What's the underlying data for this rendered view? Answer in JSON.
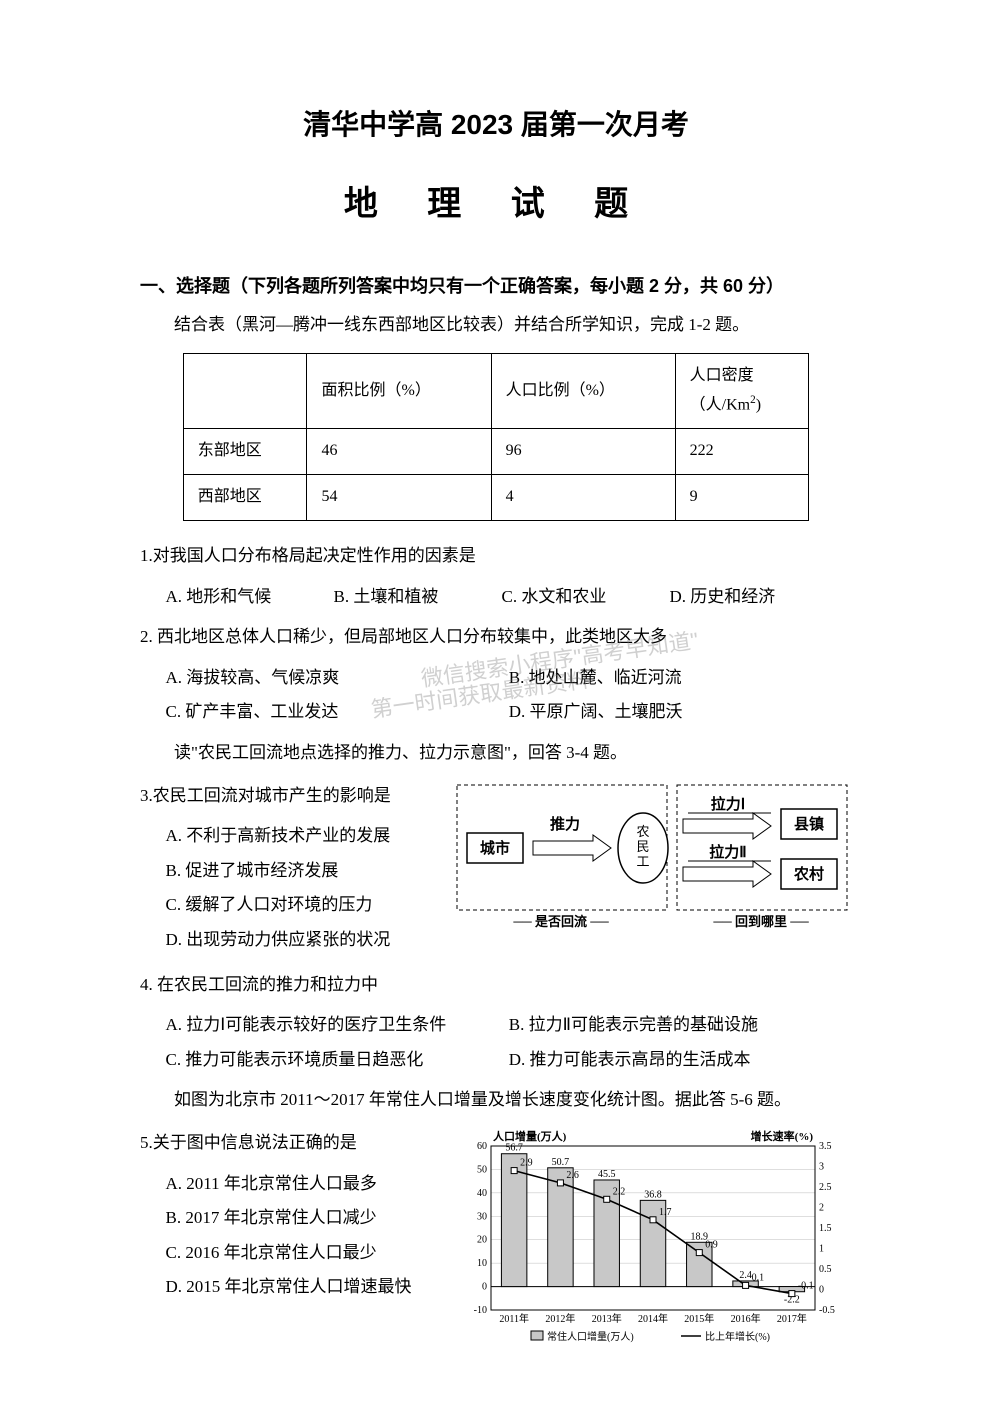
{
  "header": {
    "title1": "清华中学高 2023 届第一次月考",
    "title2": "地 理 试 题"
  },
  "section1": {
    "head": "一、选择题（下列各题所列答案中均只有一个正确答案，每小题 2 分，共 60 分）",
    "instr1": "结合表（黑河—腾冲一线东西部地区比较表）并结合所学知识，完成 1-2 题。",
    "table": {
      "headers": [
        "",
        "面积比例（%）",
        "人口比例（%）",
        "人口密度（人/Km²)"
      ],
      "rows": [
        [
          "东部地区",
          "46",
          "96",
          "222"
        ],
        [
          "西部地区",
          "54",
          "4",
          "9"
        ]
      ]
    },
    "q1": {
      "stem": "1.对我国人口分布格局起决定性作用的因素是",
      "opts": [
        "A. 地形和气候",
        "B. 土壤和植被",
        "C. 水文和农业",
        "D. 历史和经济"
      ]
    },
    "q2": {
      "stem": "2. 西北地区总体人口稀少，但局部地区人口分布较集中，此类地区大多",
      "opts": [
        "A. 海拔较高、气候凉爽",
        "B. 地处山麓、临近河流",
        "C. 矿产丰富、工业发达",
        "D. 平原广阔、土壤肥沃"
      ]
    },
    "instr2": "读\"农民工回流地点选择的推力、拉力示意图\"，回答 3-4 题。",
    "q3": {
      "stem": "3.农民工回流对城市产生的影响是",
      "opts": [
        "A. 不利于高新技术产业的发展",
        "B. 促进了城市经济发展",
        "C. 缓解了人口对环境的压力",
        "D. 出现劳动力供应紧张的状况"
      ]
    },
    "diagram3": {
      "city": "城市",
      "worker": "农民工",
      "town": "县镇",
      "village": "农村",
      "push": "推力",
      "pull1": "拉力Ⅰ",
      "pull2": "拉力Ⅱ",
      "label_left": "是否回流",
      "label_right": "回到哪里",
      "box_stroke": "#000000",
      "label_fontsize": 15
    },
    "q4": {
      "stem": "4. 在农民工回流的推力和拉力中",
      "opts": [
        "A. 拉力Ⅰ可能表示较好的医疗卫生条件",
        "B. 拉力Ⅱ可能表示完善的基础设施",
        "C. 推力可能表示环境质量日趋恶化",
        "D. 推力可能表示高昂的生活成本"
      ]
    },
    "instr3": "如图为北京市 2011～2017 年常住人口增量及增长速度变化统计图。据此答 5-6 题。",
    "q5": {
      "stem": "5.关于图中信息说法正确的是",
      "opts": [
        "A. 2011 年北京常住人口最多",
        "B. 2017 年北京常住人口减少",
        "C. 2016 年北京常住人口最少",
        "D. 2015 年北京常住人口增速最快"
      ]
    },
    "chart5": {
      "type": "combo-bar-line",
      "title_left": "人口增量(万人)",
      "title_right": "增长速率(%)",
      "categories": [
        "2011年",
        "2012年",
        "2013年",
        "2014年",
        "2015年",
        "2016年",
        "2017年"
      ],
      "bar_values": [
        56.7,
        50.7,
        45.5,
        36.8,
        18.9,
        2.4,
        -2.2
      ],
      "line_values": [
        2.9,
        2.6,
        2.2,
        1.7,
        0.9,
        0.1,
        -0.1
      ],
      "y_left": {
        "min": -10,
        "max": 60,
        "step": 10
      },
      "y_right": {
        "min": -0.5,
        "max": 3.5,
        "step": 0.5
      },
      "bar_fill": "#c8c8c8",
      "bar_stroke": "#000000",
      "line_color": "#000000",
      "grid_color": "#bdbdbd",
      "background": "#ffffff",
      "legend": [
        "常住人口增量(万人)",
        "比上年增长(%)"
      ],
      "label_fontsize": 11,
      "tick_fontsize": 10
    }
  },
  "watermark": {
    "line1": "微信搜索小程序\"高考早知道\"",
    "line2": "第一时间获取最新资料"
  }
}
